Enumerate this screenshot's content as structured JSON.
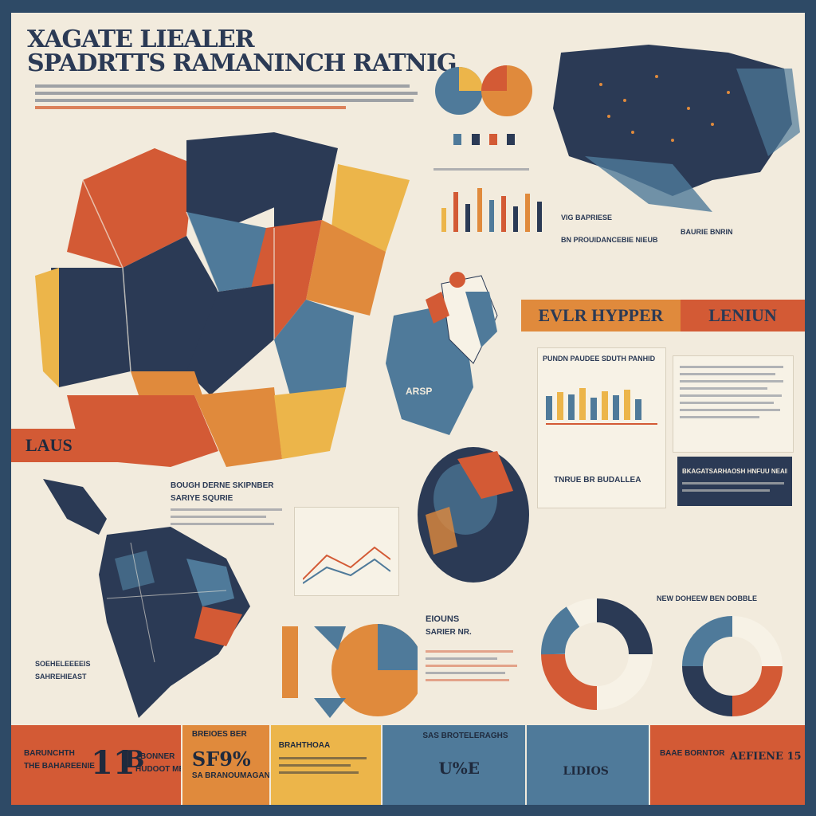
{
  "header": {
    "title_line1": "XAGATE LIEALER",
    "title_line2": "SPADRTTS RAMANINCH RATNIG"
  },
  "bands": {
    "orange_band_label": "EVLR HYPPER",
    "red_band_label": "LENIUN",
    "side_tab_label": "LAUS"
  },
  "panels": {
    "center_chart_heading": "PUNDN PAUDEE SDUTH PANHID",
    "center_list_heading": "TNRUE BR BUDALLEA",
    "dark_box_heading": "BKAGATSARHAOSH HNFUU NEAIEAR",
    "us_caption": "VIG BAPRIESE",
    "us_caption2": "BN PROUIDANCEBIE NIEUB",
    "us_caption3": "BAURIE BNRIN",
    "mid_list_heading": "BOUGH DERNE SKIPNBER",
    "mid_list_sub": "SARIYE SQURIE",
    "left_small_heading": "SOEHELEEEEIS",
    "left_small_sub": "SAHREHIEAST",
    "center_small_heading": "EIOUNS",
    "center_small_sub": "SARIER NR.",
    "right_chart_heading": "NEW DOHEEW BEN DOBBLE",
    "map_label": "ARSP"
  },
  "bottom": {
    "p1_small1": "BARUNCHTH",
    "p1_small2": "THE BAHAREENIE",
    "p1_big": "11",
    "p1_mid": "B",
    "p1_right1": "BONNER",
    "p1_right2": "HUDOOT MEN",
    "p2_top": "BREIOES BER",
    "p2_big": "SF9%",
    "p2_sub": "SA BRANOUMAGAN",
    "p3_top": "BRAHTHOAA",
    "p4_top": "SAS BROTELERAGHS",
    "p4_big": "U%E",
    "p5_big": "LIDIOS",
    "p6_small": "BAAE BORNTOR",
    "p6_right": "AEFIENE 15"
  },
  "colors": {
    "navy": "#2b3a55",
    "orange": "#e08a3c",
    "red": "#d35a35",
    "yellow": "#ecb54a",
    "steel": "#4f7a9a",
    "cream": "#f2ebdd"
  }
}
